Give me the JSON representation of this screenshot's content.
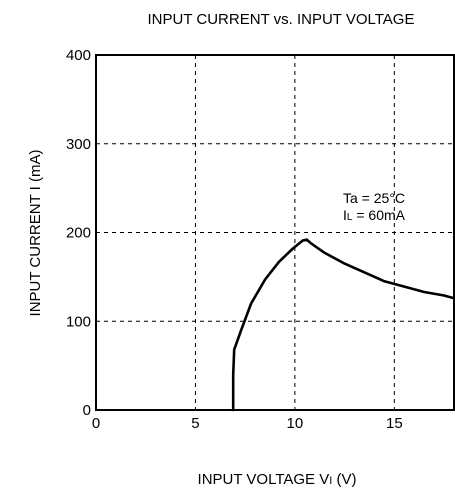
{
  "chart_data": {
    "type": "line",
    "title": "INPUT CURRENT vs. INPUT VOLTAGE",
    "xlabel": {
      "main": "INPUT VOLTAGE  V",
      "sub": "I",
      "unit": " (V)"
    },
    "ylabel": "INPUT CURRENT  I (mA)",
    "xlim": [
      0,
      18
    ],
    "ylim": [
      0,
      400
    ],
    "xticks": [
      0,
      5,
      10,
      15
    ],
    "yticks": [
      0,
      100,
      200,
      300,
      400
    ],
    "xtick_labels": [
      "0",
      "5",
      "10",
      "15"
    ],
    "ytick_labels": [
      "0",
      "100",
      "200",
      "300",
      "400"
    ],
    "grid": true,
    "annotations": {
      "line1": "Ta = 25°C",
      "line2_main": "I",
      "line2_sub": "L",
      "line2_rest": " = 60mA"
    },
    "series": [
      {
        "x": [
          6.9,
          6.9,
          6.95,
          7.3,
          7.8,
          8.5,
          9.2,
          9.9,
          10.4,
          10.6,
          10.8,
          11.5,
          12.5,
          13.5,
          14.5,
          15.5,
          16.5,
          17.5,
          18.0
        ],
        "y": [
          0,
          40,
          68,
          90,
          120,
          147,
          167,
          182,
          191,
          192,
          188,
          177,
          165,
          155,
          145,
          139,
          133,
          129,
          126
        ]
      }
    ],
    "colors": {
      "line": "#000000",
      "background": "#ffffff"
    }
  }
}
